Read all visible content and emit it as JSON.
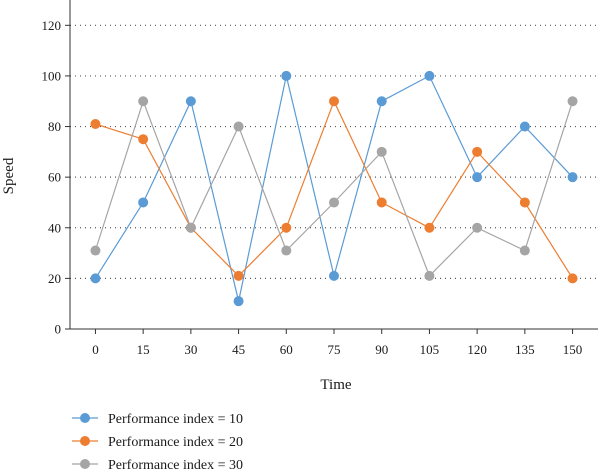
{
  "chart_data": {
    "type": "line",
    "title": "",
    "xlabel": "Time",
    "ylabel": "Speed",
    "x": [
      0,
      15,
      30,
      45,
      60,
      75,
      90,
      105,
      120,
      135,
      150
    ],
    "xticks": [
      "0",
      "15",
      "30",
      "45",
      "60",
      "75",
      "90",
      "105",
      "120",
      "135",
      "150"
    ],
    "yticks": [
      "0",
      "20",
      "40",
      "60",
      "80",
      "100",
      "120"
    ],
    "xlim": [
      -8,
      158
    ],
    "ylim": [
      0,
      130
    ],
    "grid": "horizontal-dotted",
    "legend_position": "bottom-left",
    "series": [
      {
        "name": "Performance index = 10",
        "color": "#5b9bd5",
        "values": [
          20,
          50,
          90,
          11,
          100,
          21,
          90,
          100,
          60,
          80,
          60
        ]
      },
      {
        "name": "Performance index = 20",
        "color": "#ed7d31",
        "values": [
          81,
          75,
          40,
          21,
          40,
          90,
          50,
          40,
          70,
          50,
          20
        ]
      },
      {
        "name": "Performance index = 30",
        "color": "#a5a5a5",
        "values": [
          31,
          90,
          40,
          80,
          31,
          50,
          70,
          21,
          40,
          31,
          90
        ]
      }
    ]
  }
}
